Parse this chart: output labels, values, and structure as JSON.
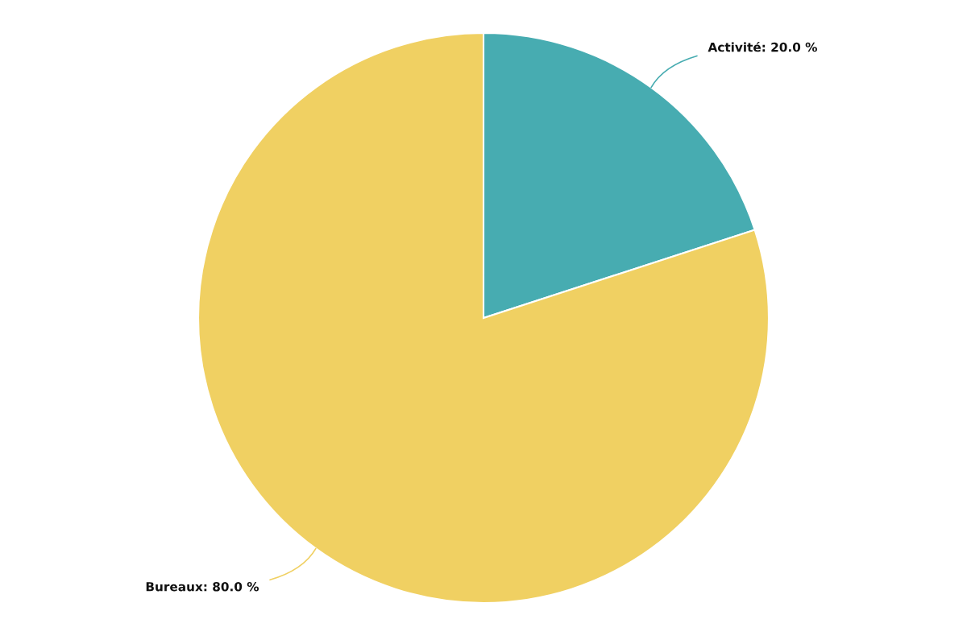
{
  "chart_data": {
    "type": "pie",
    "categories": [
      "Activité",
      "Bureaux"
    ],
    "values": [
      20,
      80
    ],
    "value_labels": [
      "20.0 %",
      "80.0 %"
    ],
    "colors": [
      "#47acb1",
      "#f0d062"
    ],
    "legend": false
  }
}
